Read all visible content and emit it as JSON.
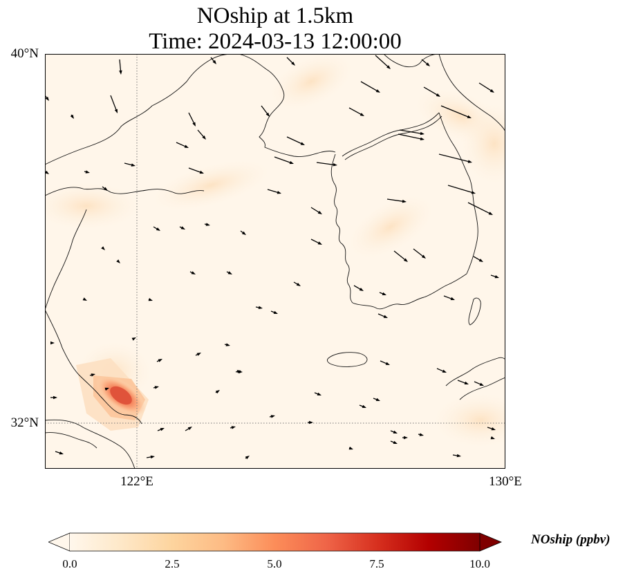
{
  "title_line_1": "NOship at 1.5km",
  "title_line_2": "Time: 2024-03-13 12:00:00",
  "map": {
    "lat_range": [
      31.2,
      40
    ],
    "lon_range": [
      120,
      130
    ],
    "lat_labels": [
      "40°N",
      "32°N"
    ],
    "lon_labels": [
      "122°E",
      "130°E"
    ],
    "gridlines": {
      "lat": 32,
      "lon": 122,
      "style": "dotted"
    },
    "hotspot_value_ppbv": 5.5
  },
  "colorbar": {
    "label": "NOship (ppbv)",
    "ticks": [
      "0.0",
      "2.5",
      "5.0",
      "7.5",
      "10.0"
    ],
    "min": 0,
    "max": 10,
    "extend": "both",
    "colormap": "OrRd",
    "stops": [
      "#fff7ec",
      "#fee8c8",
      "#fdd49e",
      "#fdbb84",
      "#fc8d59",
      "#ef6548",
      "#d7301f",
      "#b30000",
      "#7f0000"
    ]
  }
}
